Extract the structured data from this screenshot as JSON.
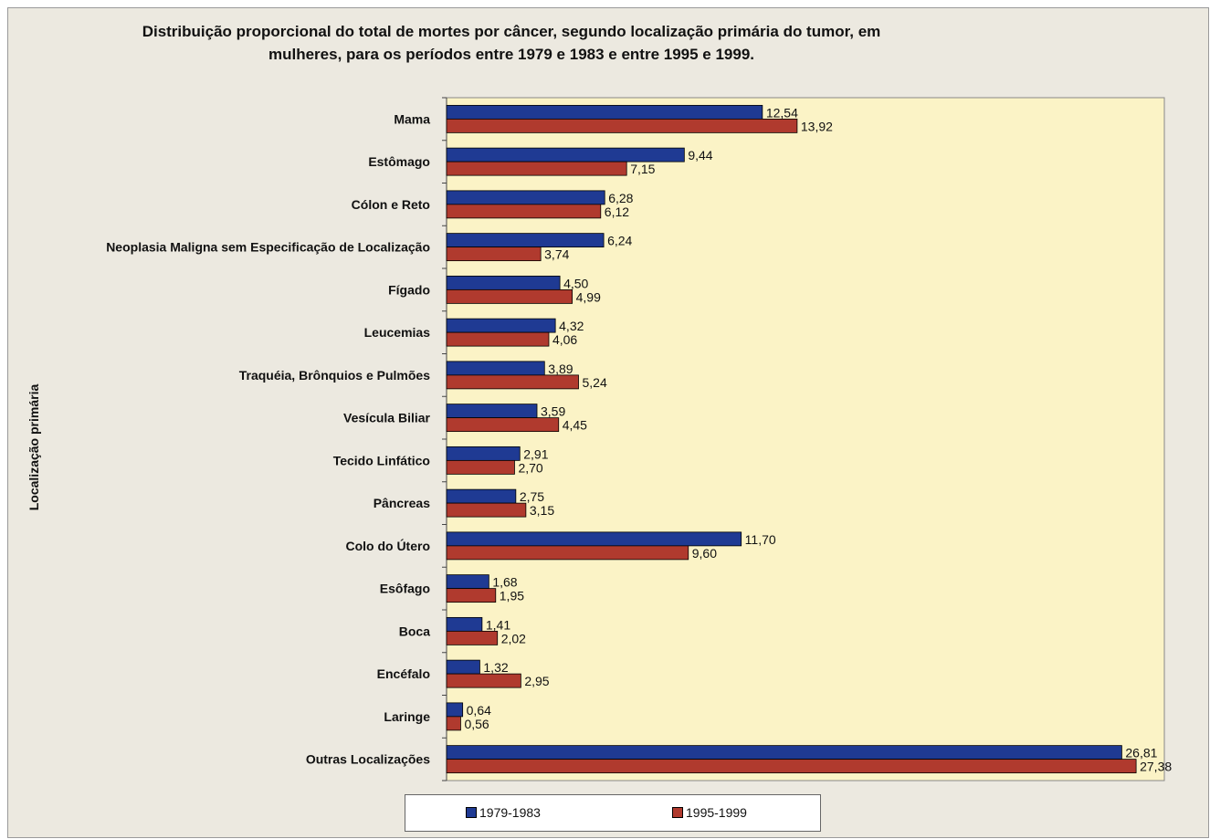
{
  "chart_data": {
    "type": "bar",
    "orientation": "horizontal",
    "title": "Distribuição proporcional do total de mortes por câncer, segundo localização primária do tumor, em mulheres, para os períodos entre 1979 e 1983 e entre 1995 e 1999.",
    "xlabel": "",
    "ylabel": "Localização primária",
    "grid": false,
    "legend_position": "bottom",
    "xlim": [
      0,
      28.5
    ],
    "categories": [
      "Mama",
      "Estômago",
      "Cólon e Reto",
      "Neoplasia Maligna sem Especificação de Localização",
      "Fígado",
      "Leucemias",
      "Traquéia, Brônquios e Pulmões",
      "Vesícula Biliar",
      "Tecido Linfático",
      "Pâncreas",
      "Colo do Útero",
      "Esôfago",
      "Boca",
      "Encéfalo",
      "Laringe",
      "Outras Localizações"
    ],
    "series": [
      {
        "name": "1979-1983",
        "color": "#1f3a93",
        "values": [
          12.54,
          9.44,
          6.28,
          6.24,
          4.5,
          4.32,
          3.89,
          3.59,
          2.91,
          2.75,
          11.7,
          1.68,
          1.41,
          1.32,
          0.64,
          26.81
        ],
        "labels": [
          "12,54",
          "9,44",
          "6,28",
          "6,24",
          "4,50",
          "4,32",
          "3,89",
          "3,59",
          "2,91",
          "2,75",
          "11,70",
          "1,68",
          "1,41",
          "1,32",
          "0,64",
          "26,81"
        ]
      },
      {
        "name": "1995-1999",
        "color": "#b03a2e",
        "values": [
          13.92,
          7.15,
          6.12,
          3.74,
          4.99,
          4.06,
          5.24,
          4.45,
          2.7,
          3.15,
          9.6,
          1.95,
          2.02,
          2.95,
          0.56,
          27.38
        ],
        "labels": [
          "13,92",
          "7,15",
          "6,12",
          "3,74",
          "4,99",
          "4,06",
          "5,24",
          "4,45",
          "2,70",
          "3,15",
          "9,60",
          "1,95",
          "2,02",
          "2,95",
          "0,56",
          "27,38"
        ]
      }
    ],
    "colors": {
      "plot_background": "#fbf3c6",
      "frame_background": "#ece9e0"
    }
  }
}
